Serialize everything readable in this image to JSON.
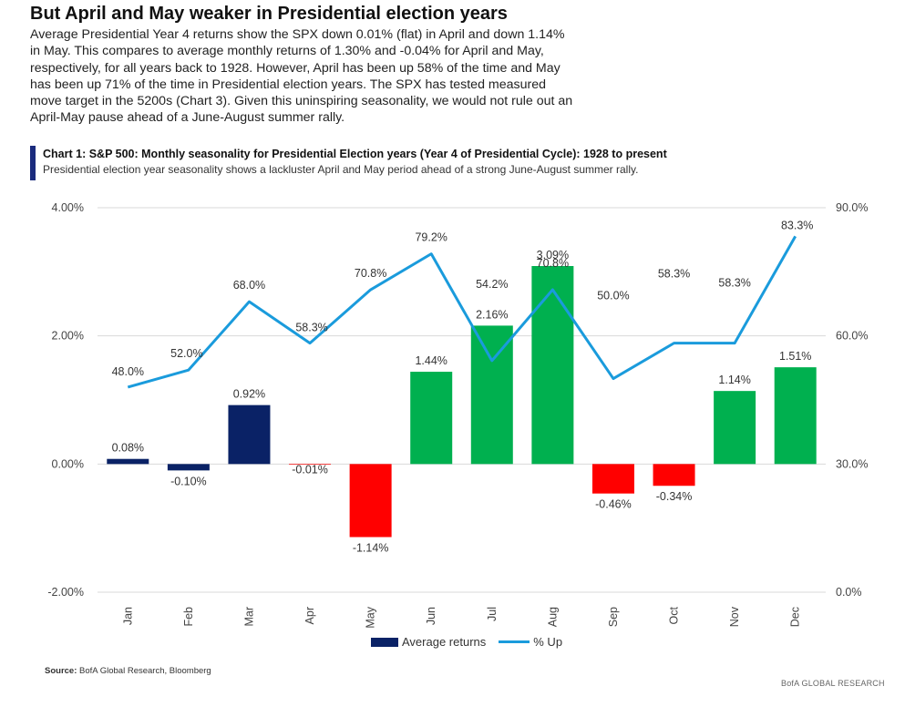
{
  "page": {
    "headline": "But April and May weaker in Presidential election years",
    "intro": "Average Presidential Year 4 returns show the SPX down 0.01% (flat) in April and down 1.14% in May. This compares to average monthly returns of 1.30% and -0.04% for April and May, respectively, for all years back to 1928. However, April has been up 58% of the time and May has been up 71% of the time in Presidential election years. The SPX has tested measured move target in the 5200s (Chart 3). Given this uninspiring seasonality, we would not rule out an April-May pause ahead of a June-August summer rally.",
    "source_label": "Source:",
    "source_text": "BofA Global Research, Bloomberg",
    "brand": "BofA GLOBAL RESEARCH"
  },
  "chart_data": {
    "type": "bar",
    "title": "Chart 1: S&P 500: Monthly seasonality for Presidential Election years (Year 4 of Presidential Cycle): 1928 to present",
    "subtitle": "Presidential election year seasonality shows a lackluster April and May period ahead of a strong June-August summer rally.",
    "categories": [
      "Jan",
      "Feb",
      "Mar",
      "Apr",
      "May",
      "Jun",
      "Jul",
      "Aug",
      "Sep",
      "Oct",
      "Nov",
      "Dec"
    ],
    "series": [
      {
        "name": "Average returns",
        "axis": "left",
        "type": "bar",
        "values": [
          0.08,
          -0.1,
          0.92,
          -0.01,
          -1.14,
          1.44,
          2.16,
          3.09,
          -0.46,
          -0.34,
          1.14,
          1.51
        ],
        "labels": [
          "0.08%",
          "-0.10%",
          "0.92%",
          "-0.01%",
          "-1.14%",
          "1.44%",
          "2.16%",
          "3.09%",
          "-0.46%",
          "-0.34%",
          "1.14%",
          "1.51%"
        ]
      },
      {
        "name": "% Up",
        "axis": "right",
        "type": "line",
        "values": [
          48.0,
          52.0,
          68.0,
          58.3,
          70.8,
          79.2,
          54.2,
          70.8,
          50.0,
          58.3,
          58.3,
          83.3
        ],
        "labels": [
          "48.0%",
          "52.0%",
          "68.0%",
          "58.3%",
          "70.8%",
          "79.2%",
          "54.2%",
          "70.8%",
          "50.0%",
          "58.3%",
          "58.3%",
          "83.3%"
        ]
      }
    ],
    "y_left": {
      "ylim": [
        -2,
        4
      ],
      "ticks": [
        -2,
        0,
        2,
        4
      ],
      "tick_labels": [
        "-2.00%",
        "0.00%",
        "2.00%",
        "4.00%"
      ]
    },
    "y_right": {
      "ylim": [
        0,
        90
      ],
      "ticks": [
        0,
        30,
        60,
        90
      ],
      "tick_labels": [
        "0.0%",
        "30.0%",
        "60.0%",
        "90.0%"
      ]
    },
    "grid": true,
    "legend": "bottom-center",
    "colors": {
      "jan_mar": "#0a2266",
      "positive": "#00b04f",
      "negative": "#ff0000",
      "line": "#1a9bdc",
      "grid": "#d9d9d9",
      "title_bar": "#1a2b7d"
    },
    "legend_swatch_bar_color": "#0a2266"
  }
}
